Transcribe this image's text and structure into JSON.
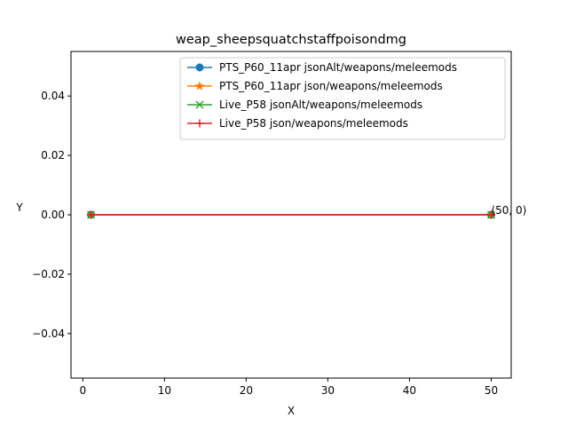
{
  "chart_data": {
    "type": "line",
    "title": "weap_sheepsquatchstaffpoisondmg",
    "xlabel": "X",
    "ylabel": "Y",
    "xlim": [
      -1.45,
      52.45
    ],
    "ylim": [
      -0.055,
      0.055
    ],
    "xticks": [
      0,
      10,
      20,
      30,
      40,
      50
    ],
    "yticks": [
      -0.04,
      -0.02,
      0.0,
      0.02,
      0.04
    ],
    "ytick_labels": [
      "−0.04",
      "−0.02",
      "0.00",
      "0.02",
      "0.04"
    ],
    "grid": false,
    "legend_position": "top-right",
    "series": [
      {
        "name": "PTS_P60_11apr jsonAlt/weapons/meleemods",
        "color": "#1f77b4",
        "marker": "circle",
        "points": [
          [
            1,
            0
          ],
          [
            50,
            0
          ]
        ]
      },
      {
        "name": "PTS_P60_11apr json/weapons/meleemods",
        "color": "#ff7f0e",
        "marker": "star",
        "points": [
          [
            1,
            0
          ],
          [
            50,
            0
          ]
        ]
      },
      {
        "name": "Live_P58 jsonAlt/weapons/meleemods",
        "color": "#2ca02c",
        "marker": "x",
        "points": [
          [
            1,
            0
          ],
          [
            50,
            0
          ]
        ]
      },
      {
        "name": "Live_P58 json/weapons/meleemods",
        "color": "#d62728",
        "marker": "plus",
        "points": [
          [
            1,
            0
          ],
          [
            50,
            0
          ]
        ]
      }
    ],
    "annotations": [
      {
        "text": "(50, 0)",
        "x": 50,
        "y": 0
      }
    ]
  }
}
